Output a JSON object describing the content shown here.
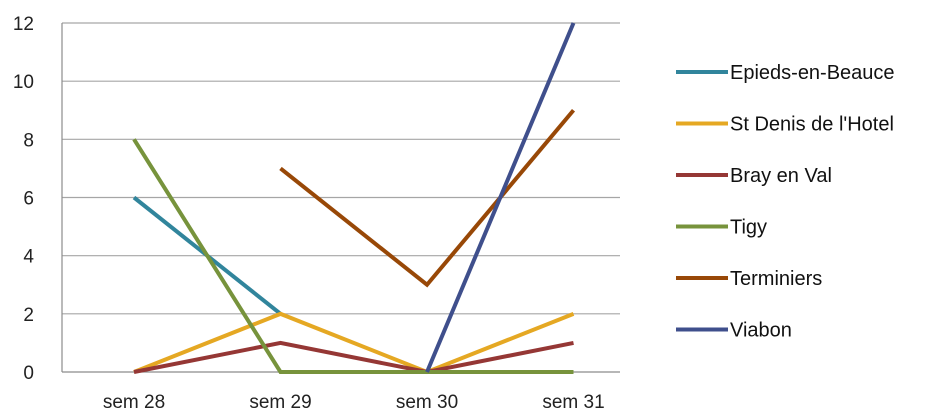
{
  "chart_data": {
    "type": "line",
    "categories": [
      "sem 28",
      "sem 29",
      "sem 30",
      "sem 31"
    ],
    "ylim": [
      0,
      12
    ],
    "yticks": [
      0,
      2,
      4,
      6,
      8,
      10,
      12
    ],
    "grid": true,
    "legend_position": "right",
    "series": [
      {
        "name": "Epieds-en-Beauce",
        "color": "#31859c",
        "values": [
          6,
          2,
          null,
          null
        ]
      },
      {
        "name": "St Denis de l'Hotel",
        "color": "#e5a823",
        "values": [
          0,
          2,
          0,
          2
        ]
      },
      {
        "name": "Bray en Val",
        "color": "#953735",
        "values": [
          0,
          1,
          0,
          1
        ]
      },
      {
        "name": "Tigy",
        "color": "#77933c",
        "values": [
          8,
          0,
          0,
          0
        ]
      },
      {
        "name": "Terminiers",
        "color": "#984807",
        "values": [
          null,
          7,
          3,
          9
        ]
      },
      {
        "name": "Viabon",
        "color": "#3f4f8c",
        "values": [
          null,
          null,
          0,
          12
        ]
      }
    ]
  }
}
